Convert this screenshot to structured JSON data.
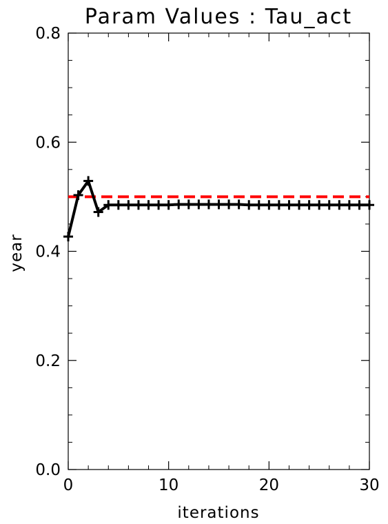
{
  "chart_data": {
    "type": "line",
    "title": "Param Values : Tau_act",
    "xlabel": "iterations",
    "ylabel": "year",
    "xlim": [
      0,
      30
    ],
    "ylim": [
      0,
      0.8
    ],
    "x_ticks": [
      "0",
      "10",
      "20",
      "30"
    ],
    "y_ticks": [
      "0.0",
      "0.2",
      "0.4",
      "0.6",
      "0.8"
    ],
    "grid": false,
    "series": [
      {
        "color": "#000000",
        "marker": "plus",
        "style": "solid",
        "x": [
          0,
          1,
          2,
          3,
          4,
          5,
          6,
          7,
          8,
          9,
          10,
          11,
          12,
          13,
          14,
          15,
          16,
          17,
          18,
          19,
          20,
          21,
          22,
          23,
          24,
          25,
          26,
          27,
          28,
          29,
          30
        ],
        "y": [
          0.427,
          0.503,
          0.529,
          0.472,
          0.485,
          0.485,
          0.485,
          0.485,
          0.485,
          0.485,
          0.485,
          0.486,
          0.486,
          0.486,
          0.486,
          0.486,
          0.486,
          0.486,
          0.485,
          0.485,
          0.485,
          0.485,
          0.485,
          0.485,
          0.485,
          0.485,
          0.485,
          0.485,
          0.485,
          0.485,
          0.485
        ]
      }
    ],
    "reference_line": {
      "y": 0.5,
      "color": "#ff0000",
      "style": "dashed"
    }
  }
}
